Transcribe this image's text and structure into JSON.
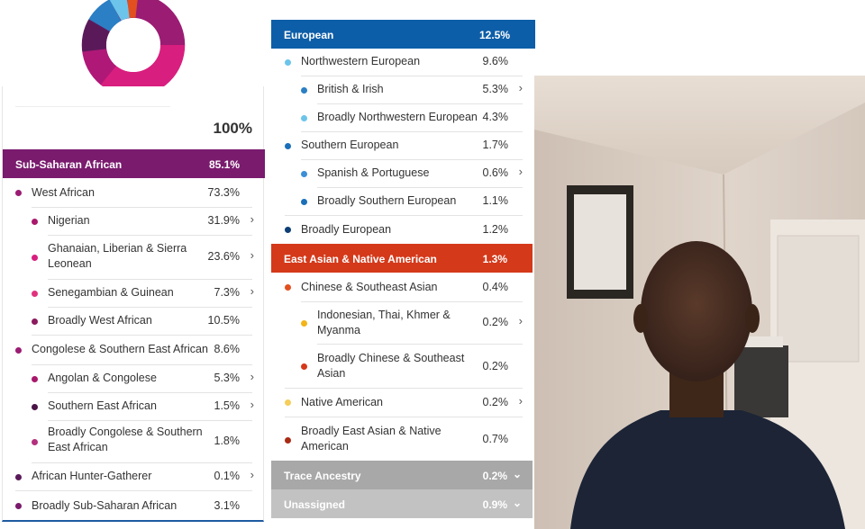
{
  "total_percent": "100%",
  "colors": {
    "sub_saharan": "#7a1b6e",
    "european": "#0d5ea8",
    "east_asian": "#d4391a",
    "trace": "#a8a8a8",
    "unassigned": "#c2c2c2"
  },
  "left": {
    "header": {
      "label": "Sub-Saharan African",
      "value": "85.1%"
    },
    "rows": [
      {
        "label": "West African",
        "value": "73.3%"
      },
      {
        "label": "Nigerian",
        "value": "31.9%"
      },
      {
        "label": "Ghanaian, Liberian & Sierra",
        "label2": "Leonean",
        "value": "23.6%"
      },
      {
        "label": "Senegambian & Guinean",
        "value": "7.3%"
      },
      {
        "label": "Broadly West African",
        "value": "10.5%"
      },
      {
        "label": "Congolese & Southern East African",
        "value": "8.6%"
      },
      {
        "label": "Angolan & Congolese",
        "value": "5.3%"
      },
      {
        "label": "Southern East African",
        "value": "1.5%"
      },
      {
        "label": "Broadly Congolese & Southern",
        "label2": "East African",
        "value": "1.8%"
      },
      {
        "label": "African Hunter-Gatherer",
        "value": "0.1%"
      },
      {
        "label": "Broadly Sub-Saharan African",
        "value": "3.1%"
      }
    ]
  },
  "middle": {
    "european": {
      "label": "European",
      "value": "12.5%"
    },
    "eu_rows": [
      {
        "label": "Northwestern European",
        "value": "9.6%"
      },
      {
        "label": "British & Irish",
        "value": "5.3%"
      },
      {
        "label": "Broadly Northwestern European",
        "value": "4.3%"
      },
      {
        "label": "Southern European",
        "value": "1.7%"
      },
      {
        "label": "Spanish & Portuguese",
        "value": "0.6%"
      },
      {
        "label": "Broadly Southern European",
        "value": "1.1%"
      },
      {
        "label": "Broadly European",
        "value": "1.2%"
      }
    ],
    "east_asian": {
      "label": "East Asian & Native American",
      "value": "1.3%"
    },
    "ea_rows": [
      {
        "label": "Chinese & Southeast Asian",
        "value": "0.4%"
      },
      {
        "label": "Indonesian, Thai, Khmer &",
        "label2": "Myanma",
        "value": "0.2%"
      },
      {
        "label": "Broadly Chinese & Southeast",
        "label2": "Asian",
        "value": "0.2%"
      },
      {
        "label": "Native American",
        "value": "0.2%"
      },
      {
        "label": "Broadly East Asian & Native",
        "label2": "American",
        "value": "0.7%"
      }
    ],
    "trace": {
      "label": "Trace Ancestry",
      "value": "0.2%"
    },
    "unassigned": {
      "label": "Unassigned",
      "value": "0.9%"
    }
  }
}
